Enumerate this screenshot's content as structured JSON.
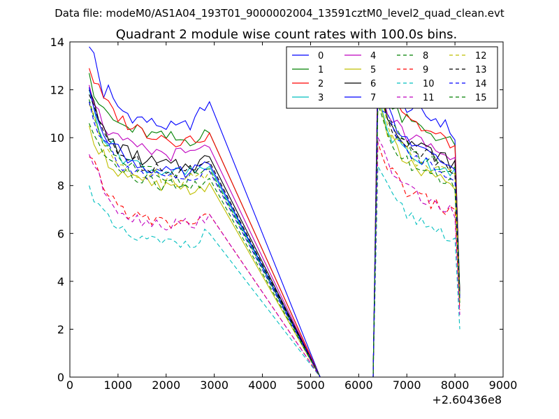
{
  "suptitle": "Data file: modeM0/AS1A04_193T01_9000002004_13591cztM0_level2_quad_clean.evt",
  "chart_data": {
    "type": "line",
    "title": "Quadrant 2 module wise count rates with 100.0s bins.",
    "xlabel": "",
    "ylabel": "",
    "x_offset_label": "+2.60436e8",
    "xlim": [
      0,
      9000
    ],
    "ylim": [
      0,
      14
    ],
    "x_ticks": [
      0,
      1000,
      2000,
      3000,
      4000,
      5000,
      6000,
      7000,
      8000,
      9000
    ],
    "y_ticks": [
      0,
      2,
      4,
      6,
      8,
      10,
      12,
      14
    ],
    "grid": false,
    "legend_placement": "top-right",
    "gap_x": [
      5200,
      6300
    ],
    "series": [
      {
        "name": "0",
        "color": "#0000ff",
        "dash": "solid",
        "seg1": [
          13.8,
          13.5,
          12.6,
          11.8,
          12.0,
          11.5,
          11.3,
          11.1,
          11.0,
          10.9,
          10.8,
          10.8,
          10.7,
          10.6,
          10.6,
          10.5,
          10.5,
          10.4,
          10.4,
          10.4,
          10.5,
          10.6,
          10.8,
          11.0,
          11.3,
          11.5
        ],
        "seg2": [
          13.6,
          12.3,
          11.8,
          11.6,
          11.5,
          11.4,
          11.3,
          11.2,
          11.1,
          11.0,
          10.9,
          10.8,
          10.8,
          10.7,
          10.5,
          10.3,
          10.0,
          3.5
        ]
      },
      {
        "name": "1",
        "color": "#008000",
        "dash": "solid",
        "seg1": [
          12.7,
          11.8,
          11.5,
          11.0,
          11.0,
          10.7,
          10.6,
          10.5,
          10.4,
          10.3,
          10.3,
          10.2,
          10.2,
          10.1,
          10.1,
          10.0,
          10.0,
          10.0,
          9.9,
          9.9,
          9.9,
          9.9,
          10.0,
          10.0,
          10.1,
          10.2
        ],
        "seg2": [
          13.0,
          12.2,
          11.6,
          11.2,
          11.0,
          10.8,
          10.7,
          10.6,
          10.5,
          10.4,
          10.3,
          10.2,
          10.1,
          10.0,
          9.9,
          9.8,
          9.6,
          3.6
        ]
      },
      {
        "name": "2",
        "color": "#ff0000",
        "dash": "solid",
        "seg1": [
          12.9,
          12.4,
          12.0,
          11.6,
          11.3,
          11.1,
          10.9,
          10.7,
          10.6,
          10.5,
          10.4,
          10.3,
          10.2,
          10.2,
          10.1,
          10.1,
          10.0,
          10.0,
          9.9,
          9.9,
          9.9,
          9.9,
          10.0,
          10.0,
          10.1,
          10.2
        ],
        "seg2": [
          13.4,
          12.8,
          12.2,
          11.8,
          11.5,
          11.2,
          11.0,
          10.8,
          10.6,
          10.4,
          10.3,
          10.2,
          10.1,
          10.0,
          9.9,
          9.8,
          9.6,
          3.4
        ]
      },
      {
        "name": "3",
        "color": "#00bfbf",
        "dash": "solid",
        "seg1": [
          12.0,
          11.2,
          10.6,
          10.1,
          9.8,
          9.6,
          9.4,
          9.2,
          9.1,
          9.0,
          8.9,
          8.8,
          8.8,
          8.7,
          8.7,
          8.6,
          8.6,
          8.6,
          8.5,
          8.5,
          8.5,
          8.5,
          8.6,
          8.6,
          8.7,
          8.8
        ],
        "seg2": [
          12.0,
          11.0,
          10.4,
          10.0,
          9.8,
          9.6,
          9.4,
          9.3,
          9.2,
          9.1,
          9.0,
          8.9,
          8.8,
          8.8,
          8.7,
          8.7,
          8.6,
          3.3
        ]
      },
      {
        "name": "4",
        "color": "#bf00bf",
        "dash": "solid",
        "seg1": [
          12.2,
          11.6,
          11.0,
          10.6,
          10.3,
          10.1,
          9.9,
          9.8,
          9.7,
          9.6,
          9.6,
          9.5,
          9.5,
          9.4,
          9.4,
          9.4,
          9.3,
          9.3,
          9.3,
          9.3,
          9.3,
          9.3,
          9.4,
          9.4,
          9.5,
          9.6
        ],
        "seg2": [
          12.5,
          11.8,
          11.2,
          10.8,
          10.5,
          10.3,
          10.1,
          10.0,
          9.9,
          9.8,
          9.7,
          9.6,
          9.5,
          9.4,
          9.3,
          9.2,
          9.1,
          3.4
        ]
      },
      {
        "name": "5",
        "color": "#bfbf00",
        "dash": "solid",
        "seg1": [
          10.5,
          10.0,
          9.6,
          9.3,
          9.0,
          8.8,
          8.6,
          8.5,
          8.4,
          8.3,
          8.2,
          8.1,
          8.1,
          8.0,
          8.0,
          7.9,
          7.9,
          7.9,
          7.8,
          7.8,
          7.8,
          7.8,
          7.9,
          7.9,
          8.0,
          8.1
        ],
        "seg2": [
          11.5,
          10.8,
          10.2,
          9.8,
          9.5,
          9.2,
          9.0,
          8.8,
          8.7,
          8.6,
          8.5,
          8.4,
          8.3,
          8.2,
          8.2,
          8.1,
          8.0,
          3.2
        ]
      },
      {
        "name": "6",
        "color": "#000000",
        "dash": "solid",
        "seg1": [
          12.0,
          11.3,
          10.7,
          10.3,
          10.0,
          9.8,
          9.6,
          9.5,
          9.4,
          9.3,
          9.2,
          9.1,
          9.0,
          9.0,
          8.9,
          8.9,
          8.9,
          8.8,
          8.8,
          8.8,
          8.8,
          8.9,
          8.9,
          9.0,
          9.1,
          9.2
        ],
        "seg2": [
          12.4,
          11.6,
          11.0,
          10.6,
          10.3,
          10.1,
          9.9,
          9.8,
          9.7,
          9.6,
          9.5,
          9.4,
          9.3,
          9.2,
          9.1,
          9.0,
          8.9,
          3.5
        ]
      },
      {
        "name": "7",
        "color": "#0000ff",
        "dash": "solid",
        "seg1": [
          12.1,
          11.4,
          10.8,
          10.4,
          10.0,
          9.7,
          9.5,
          9.3,
          9.2,
          9.0,
          8.9,
          8.8,
          8.8,
          8.7,
          8.6,
          8.6,
          8.5,
          8.5,
          8.5,
          8.5,
          8.5,
          8.5,
          8.6,
          8.7,
          8.8,
          8.9
        ],
        "seg2": [
          12.6,
          11.8,
          11.2,
          10.7,
          10.4,
          10.1,
          9.9,
          9.7,
          9.5,
          9.4,
          9.3,
          9.2,
          9.1,
          9.0,
          8.9,
          8.8,
          8.7,
          3.3
        ]
      },
      {
        "name": "8",
        "color": "#008000",
        "dash": "dashed",
        "seg1": [
          11.6,
          10.9,
          10.3,
          9.9,
          9.6,
          9.4,
          9.2,
          9.0,
          8.9,
          8.8,
          8.7,
          8.6,
          8.6,
          8.5,
          8.5,
          8.4,
          8.4,
          8.4,
          8.3,
          8.3,
          8.3,
          8.4,
          8.4,
          8.5,
          8.6,
          8.7
        ],
        "seg2": [
          12.2,
          11.4,
          10.8,
          10.4,
          10.1,
          9.8,
          9.6,
          9.4,
          9.3,
          9.2,
          9.1,
          9.0,
          8.9,
          8.8,
          8.7,
          8.6,
          8.5,
          3.4
        ]
      },
      {
        "name": "9",
        "color": "#ff0000",
        "dash": "dashed",
        "seg1": [
          9.2,
          8.8,
          8.4,
          8.0,
          7.7,
          7.4,
          7.2,
          7.0,
          6.9,
          6.8,
          6.7,
          6.6,
          6.6,
          6.5,
          6.5,
          6.5,
          6.4,
          6.4,
          6.4,
          6.4,
          6.4,
          6.5,
          6.5,
          6.6,
          6.7,
          6.8
        ],
        "seg2": [
          9.8,
          9.2,
          8.8,
          8.5,
          8.2,
          8.0,
          7.8,
          7.7,
          7.6,
          7.5,
          7.4,
          7.3,
          7.2,
          7.1,
          7.0,
          6.9,
          6.8,
          2.8
        ]
      },
      {
        "name": "10",
        "color": "#00bfbf",
        "dash": "dashed",
        "seg1": [
          8.0,
          7.5,
          7.1,
          6.8,
          6.5,
          6.3,
          6.1,
          6.0,
          5.9,
          5.8,
          5.8,
          5.7,
          5.7,
          5.7,
          5.6,
          5.6,
          5.6,
          5.6,
          5.6,
          5.6,
          5.6,
          5.7,
          5.7,
          5.8,
          5.9,
          6.0
        ],
        "seg2": [
          8.8,
          8.2,
          7.8,
          7.5,
          7.2,
          7.0,
          6.8,
          6.7,
          6.6,
          6.5,
          6.4,
          6.3,
          6.2,
          6.1,
          6.0,
          5.9,
          5.8,
          2.0
        ]
      },
      {
        "name": "11",
        "color": "#bf00bf",
        "dash": "dashed",
        "seg1": [
          9.3,
          8.8,
          8.3,
          7.9,
          7.6,
          7.3,
          7.1,
          6.9,
          6.8,
          6.7,
          6.6,
          6.6,
          6.5,
          6.5,
          6.5,
          6.4,
          6.4,
          6.4,
          6.4,
          6.4,
          6.4,
          6.5,
          6.5,
          6.6,
          6.7,
          6.8
        ],
        "seg2": [
          10.0,
          9.4,
          9.0,
          8.6,
          8.3,
          8.1,
          7.9,
          7.8,
          7.6,
          7.5,
          7.4,
          7.3,
          7.2,
          7.1,
          7.0,
          6.9,
          6.8,
          2.6
        ]
      },
      {
        "name": "12",
        "color": "#bfbf00",
        "dash": "dashed",
        "seg1": [
          11.4,
          10.7,
          10.2,
          9.8,
          9.5,
          9.3,
          9.1,
          8.9,
          8.8,
          8.7,
          8.6,
          8.5,
          8.5,
          8.4,
          8.4,
          8.3,
          8.3,
          8.3,
          8.2,
          8.2,
          8.2,
          8.3,
          8.3,
          8.4,
          8.5,
          8.6
        ],
        "seg2": [
          12.0,
          11.2,
          10.6,
          10.2,
          9.9,
          9.6,
          9.4,
          9.2,
          9.1,
          9.0,
          8.9,
          8.8,
          8.7,
          8.6,
          8.5,
          8.4,
          8.3,
          3.2
        ]
      },
      {
        "name": "13",
        "color": "#000000",
        "dash": "dashed",
        "seg1": [
          11.8,
          11.1,
          10.6,
          10.2,
          9.9,
          9.7,
          9.5,
          9.3,
          9.2,
          9.1,
          9.0,
          8.9,
          8.9,
          8.8,
          8.8,
          8.7,
          8.7,
          8.7,
          8.6,
          8.6,
          8.6,
          8.7,
          8.7,
          8.8,
          8.9,
          9.0
        ],
        "seg2": [
          12.3,
          11.5,
          10.9,
          10.5,
          10.2,
          9.9,
          9.7,
          9.6,
          9.5,
          9.4,
          9.3,
          9.2,
          9.1,
          9.0,
          8.9,
          8.8,
          8.7,
          3.4
        ]
      },
      {
        "name": "14",
        "color": "#0000ff",
        "dash": "dashed",
        "seg1": [
          11.5,
          10.8,
          10.3,
          9.9,
          9.6,
          9.3,
          9.1,
          8.9,
          8.8,
          8.7,
          8.6,
          8.5,
          8.4,
          8.4,
          8.3,
          8.3,
          8.3,
          8.2,
          8.2,
          8.2,
          8.2,
          8.2,
          8.3,
          8.4,
          8.5,
          8.6
        ],
        "seg2": [
          12.1,
          11.3,
          10.7,
          10.3,
          10.0,
          9.7,
          9.5,
          9.3,
          9.2,
          9.1,
          9.0,
          8.9,
          8.8,
          8.7,
          8.6,
          8.5,
          8.4,
          3.3
        ]
      },
      {
        "name": "15",
        "color": "#008000",
        "dash": "dashed",
        "seg1": [
          10.6,
          10.1,
          9.7,
          9.4,
          9.1,
          8.9,
          8.7,
          8.6,
          8.5,
          8.4,
          8.3,
          8.2,
          8.2,
          8.1,
          8.1,
          8.0,
          8.0,
          8.0,
          7.9,
          7.9,
          7.9,
          8.0,
          8.0,
          8.1,
          8.2,
          8.3
        ],
        "seg2": [
          11.4,
          10.7,
          10.2,
          9.8,
          9.5,
          9.3,
          9.1,
          8.9,
          8.8,
          8.7,
          8.6,
          8.5,
          8.4,
          8.3,
          8.2,
          8.1,
          8.0,
          3.1
        ]
      }
    ]
  }
}
